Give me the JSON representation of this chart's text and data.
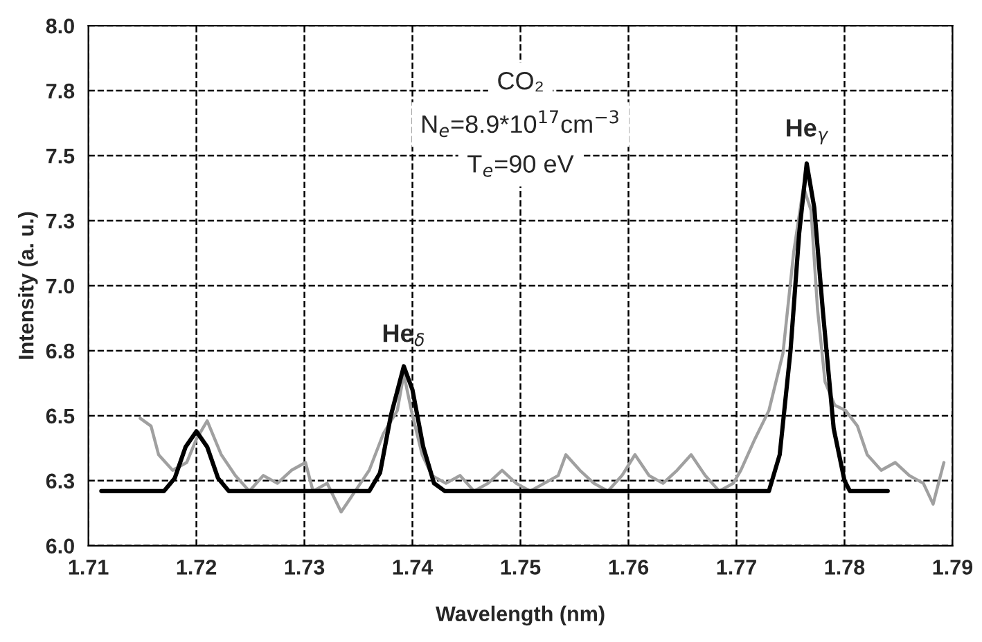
{
  "chart_data": {
    "type": "line",
    "xlabel": "Wavelength (nm)",
    "ylabel": "Intensity (a. u.)",
    "xlim": [
      1.71,
      1.79
    ],
    "xticks": [
      1.71,
      1.72,
      1.73,
      1.74,
      1.75,
      1.76,
      1.77,
      1.78,
      1.79
    ],
    "ylim": [
      6.0,
      8.0
    ],
    "yticks": [
      {
        "value": 6.0,
        "label": "6.0"
      },
      {
        "value": 6.25,
        "label": "6.3"
      },
      {
        "value": 6.5,
        "label": "6.5"
      },
      {
        "value": 6.75,
        "label": "6.8"
      },
      {
        "value": 7.0,
        "label": "7.0"
      },
      {
        "value": 7.25,
        "label": "7.3"
      },
      {
        "value": 7.5,
        "label": "7.5"
      },
      {
        "value": 7.75,
        "label": "7.8"
      },
      {
        "value": 8.0,
        "label": "8.0"
      }
    ],
    "grid": true,
    "legend": false,
    "marker": "none",
    "line_style": "solid",
    "series": [
      {
        "color": "#a0a0a0",
        "x": [
          1.7148,
          1.7158,
          1.7165,
          1.7178,
          1.7191,
          1.72,
          1.721,
          1.7223,
          1.7236,
          1.7249,
          1.7262,
          1.7275,
          1.7288,
          1.7301,
          1.7308,
          1.7321,
          1.7334,
          1.7347,
          1.736,
          1.7373,
          1.7386,
          1.7392,
          1.7399,
          1.7409,
          1.7418,
          1.7431,
          1.7444,
          1.7457,
          1.747,
          1.7483,
          1.7496,
          1.7509,
          1.7522,
          1.7535,
          1.7542,
          1.7555,
          1.7568,
          1.7581,
          1.7594,
          1.7606,
          1.7619,
          1.7632,
          1.7645,
          1.7658,
          1.7671,
          1.7684,
          1.7697,
          1.7704,
          1.7717,
          1.773,
          1.7743,
          1.7753,
          1.7762,
          1.7769,
          1.7775,
          1.7782,
          1.7791,
          1.7801,
          1.7812,
          1.7821,
          1.7834,
          1.7847,
          1.786,
          1.7873,
          1.7882,
          1.7892
        ],
        "values": [
          6.49,
          6.46,
          6.35,
          6.29,
          6.32,
          6.41,
          6.48,
          6.35,
          6.27,
          6.21,
          6.27,
          6.24,
          6.29,
          6.32,
          6.21,
          6.24,
          6.13,
          6.21,
          6.29,
          6.43,
          6.52,
          6.66,
          6.52,
          6.35,
          6.27,
          6.24,
          6.27,
          6.21,
          6.24,
          6.29,
          6.24,
          6.21,
          6.24,
          6.27,
          6.35,
          6.29,
          6.24,
          6.21,
          6.27,
          6.35,
          6.27,
          6.24,
          6.29,
          6.35,
          6.27,
          6.21,
          6.24,
          6.29,
          6.41,
          6.52,
          6.74,
          7.13,
          7.38,
          7.29,
          6.91,
          6.63,
          6.54,
          6.52,
          6.46,
          6.35,
          6.29,
          6.32,
          6.27,
          6.24,
          6.16,
          6.32
        ]
      },
      {
        "color": "#000000",
        "x": [
          1.7112,
          1.717,
          1.718,
          1.719,
          1.72,
          1.721,
          1.722,
          1.723,
          1.736,
          1.737,
          1.738,
          1.7392,
          1.74,
          1.741,
          1.742,
          1.743,
          1.773,
          1.774,
          1.775,
          1.7758,
          1.7765,
          1.7772,
          1.778,
          1.779,
          1.78,
          1.7805,
          1.784
        ],
        "values": [
          6.21,
          6.21,
          6.26,
          6.38,
          6.44,
          6.38,
          6.26,
          6.21,
          6.21,
          6.28,
          6.5,
          6.69,
          6.6,
          6.38,
          6.24,
          6.21,
          6.21,
          6.35,
          6.75,
          7.2,
          7.47,
          7.3,
          6.9,
          6.45,
          6.25,
          6.21,
          6.21
        ]
      }
    ],
    "annotations": [
      "CO₂",
      "N$_{e}$=8.9*10$^{17}$cm$^{−3}$",
      "T$_{e}$=90 eV",
      {
        "text": "He$_{δ}$",
        "x": 1.7392,
        "y": 6.69
      },
      {
        "text": "He$_{γ}$",
        "x": 1.7765,
        "y": 7.47
      }
    ]
  }
}
